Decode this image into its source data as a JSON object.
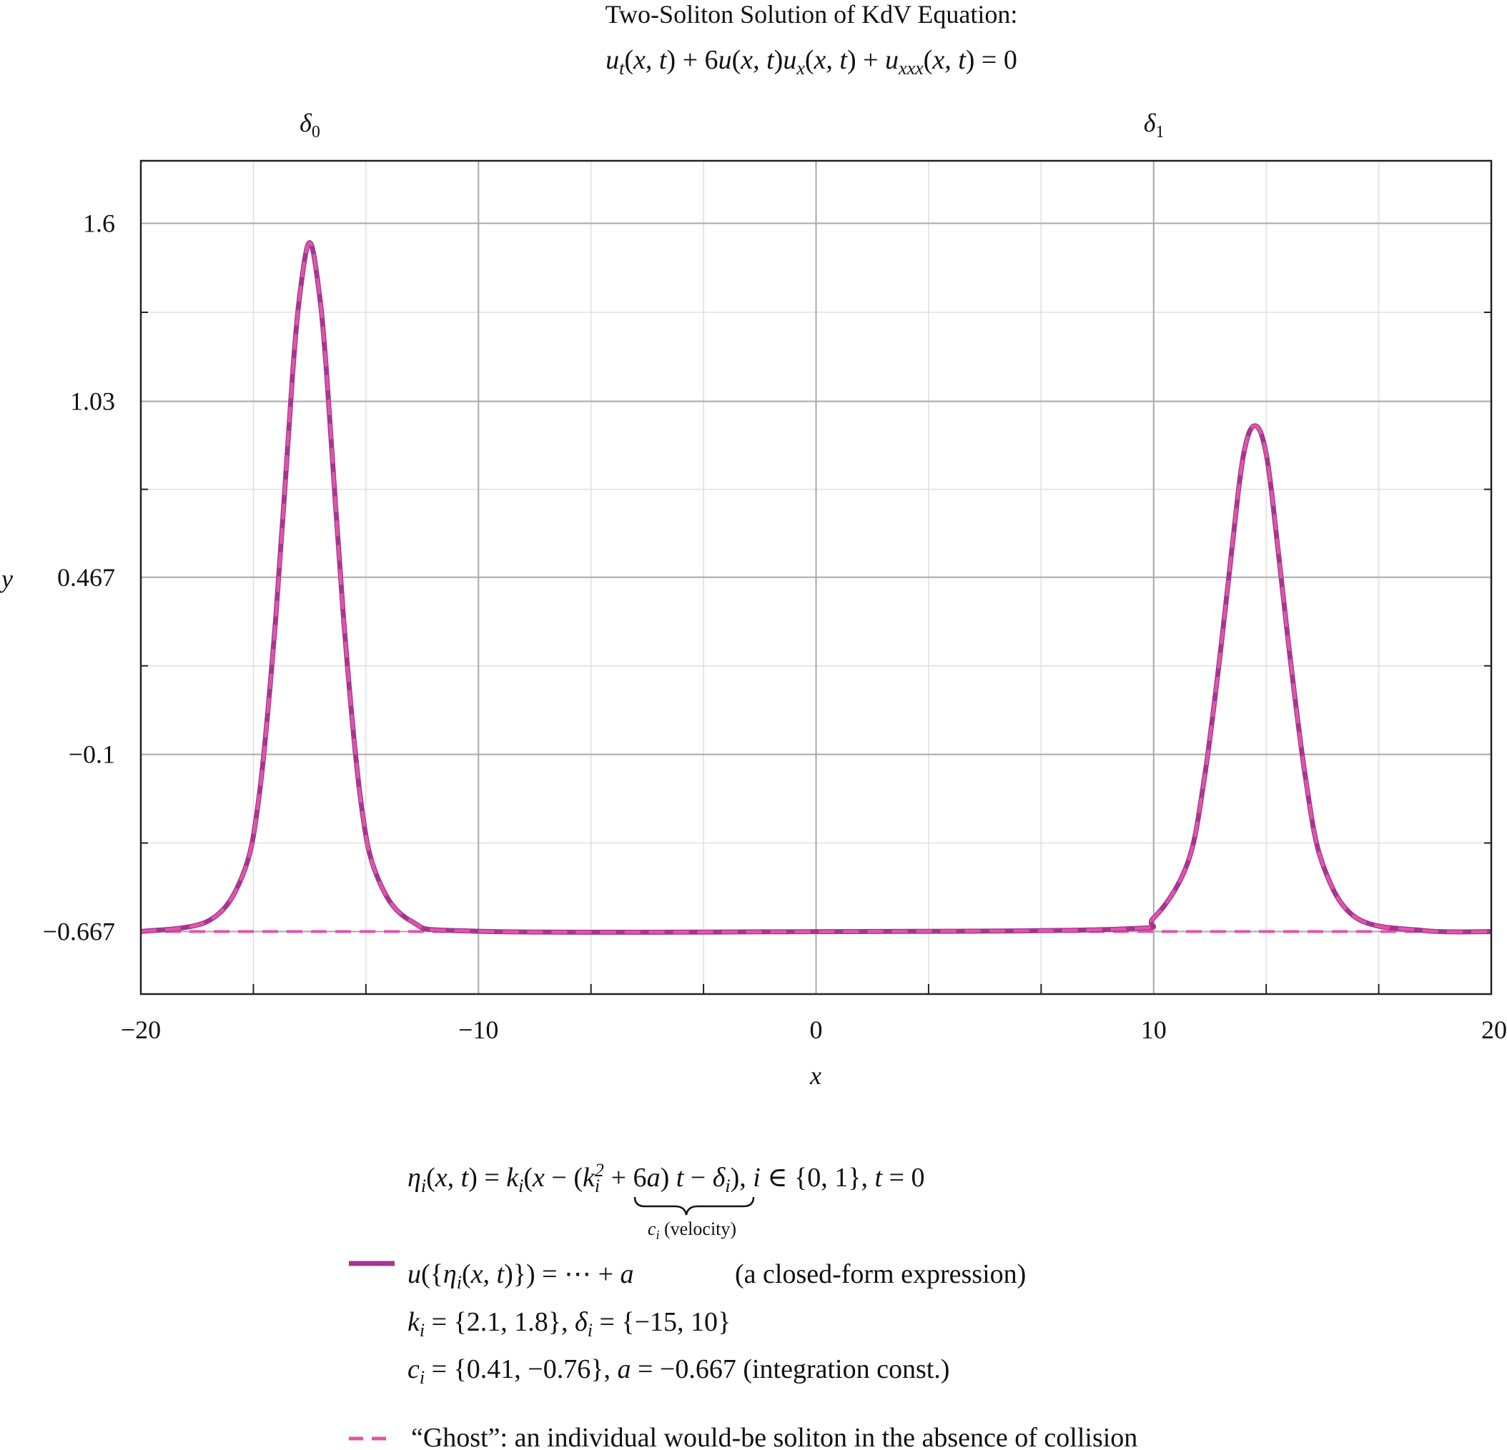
{
  "chart_data": {
    "type": "line",
    "title": "Two-Soliton Solution of KdV Equation:",
    "equation": "u_t(x,t) + 6u(x,t)u_x(x,t) + u_xxx(x,t) = 0",
    "xlabel": "x",
    "ylabel": "y",
    "xlim": [
      -20,
      20
    ],
    "ylim": [
      -0.867,
      1.8
    ],
    "xticks": [
      -20,
      -10,
      0,
      10,
      20
    ],
    "xtick_labels": [
      "−20",
      "−10",
      "0",
      "10",
      "20"
    ],
    "yticks": [
      -0.667,
      -0.1,
      0.467,
      1.03,
      1.6
    ],
    "ytick_labels": [
      "−0.667",
      "−0.1",
      "0.467",
      "1.03",
      "1.6"
    ],
    "top_ticks": [
      -15,
      10
    ],
    "top_tick_labels": [
      "δ0",
      "δ1"
    ],
    "grid": true,
    "legend_position": "bottom",
    "params": {
      "k": [
        2.1,
        1.8
      ],
      "delta": [
        -15,
        10
      ],
      "c": [
        0.41,
        -0.76
      ],
      "a": -0.667,
      "t": 0
    },
    "series": [
      {
        "name": "u({η_i(x,t)}) = ⋯ + a",
        "color": "#a3378f",
        "style": "solid",
        "x": [
          -20,
          -18,
          -17,
          -16.5,
          -16,
          -15.5,
          -15.25,
          -15,
          -14.75,
          -14.5,
          -14,
          -13.5,
          -13,
          -12,
          -10,
          0,
          9,
          10,
          11,
          11.5,
          12,
          12.5,
          12.75,
          13,
          13.25,
          13.5,
          14,
          14.5,
          15,
          16,
          18,
          20
        ],
        "y": [
          -0.667,
          -0.633,
          -0.491,
          -0.236,
          0.343,
          1.125,
          1.406,
          1.538,
          1.406,
          1.125,
          0.343,
          -0.236,
          -0.491,
          -0.633,
          -0.666,
          -0.667,
          -0.659,
          -0.623,
          -0.449,
          -0.177,
          0.249,
          0.735,
          0.903,
          0.952,
          0.903,
          0.735,
          0.249,
          -0.177,
          -0.449,
          -0.623,
          -0.664,
          -0.667
        ]
      },
      {
        "name": "“Ghost”: an individual would-be soliton in the absence of collision",
        "color": "#e055a8",
        "style": "dashed",
        "x": [
          -20,
          -18,
          -17,
          -16.5,
          -16,
          -15.5,
          -15.25,
          -15,
          -14.75,
          -14.5,
          -14,
          -13.5,
          -13,
          -12,
          -10,
          0,
          9,
          10,
          11,
          11.5,
          12,
          12.5,
          12.75,
          13,
          13.25,
          13.5,
          14,
          14.5,
          15,
          16,
          18,
          20
        ],
        "y": [
          -0.667,
          -0.633,
          -0.491,
          -0.236,
          0.343,
          1.125,
          1.406,
          1.538,
          1.406,
          1.125,
          0.343,
          -0.236,
          -0.491,
          -0.633,
          -0.666,
          -0.667,
          -0.659,
          -0.623,
          -0.449,
          -0.177,
          0.249,
          0.735,
          0.903,
          0.952,
          0.903,
          0.735,
          0.249,
          -0.177,
          -0.449,
          -0.623,
          -0.664,
          -0.667
        ]
      }
    ],
    "baseline": {
      "color": "#e055a8",
      "style": "dashed",
      "y": -0.667
    },
    "legend": {
      "eta_lhs": "η_i(x,t) = k_i(x − (k_i² + 6a) t − δ_i),   i ∈ {0,1},   t = 0",
      "brace_label": "c_i (velocity)",
      "line1": "u({η_i(x,t)}) = ⋯ + a",
      "line1_note": "(a closed-form expression)",
      "line2": "k_i = {2.1, 1.8},    δ_i = {−15, 10}",
      "line3": "c_i = {0.41, −0.76},    a = −0.667 (integration const.)",
      "ghost": "“Ghost”: an individual would-be soliton in the absence of collision"
    }
  }
}
